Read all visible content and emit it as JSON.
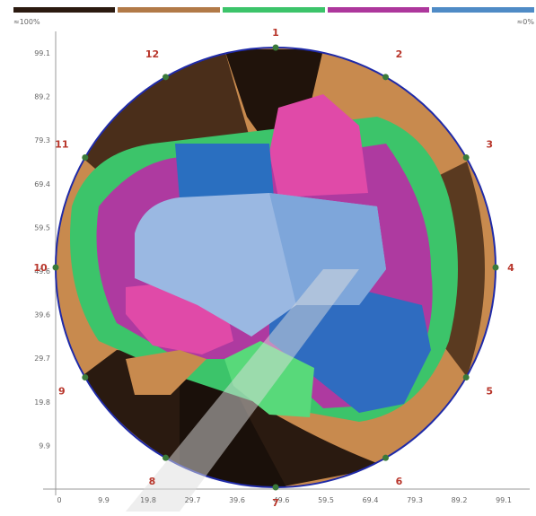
{
  "legend": {
    "left_label": "≈100%",
    "right_label": "≈0%"
  },
  "y_axis": {
    "ticks": [
      "99.1",
      "89.2",
      "79.3",
      "69.4",
      "59.5",
      "49.6",
      "39.6",
      "29.7",
      "19.8",
      "9.9"
    ]
  },
  "x_axis": {
    "ticks": [
      "0",
      "9.9",
      "19.8",
      "29.7",
      "39.6",
      "49.6",
      "59.5",
      "69.4",
      "79.3",
      "89.2",
      "99.1"
    ]
  },
  "positions": [
    "1",
    "2",
    "3",
    "4",
    "5",
    "6",
    "7",
    "8",
    "9",
    "10",
    "11",
    "12"
  ]
}
